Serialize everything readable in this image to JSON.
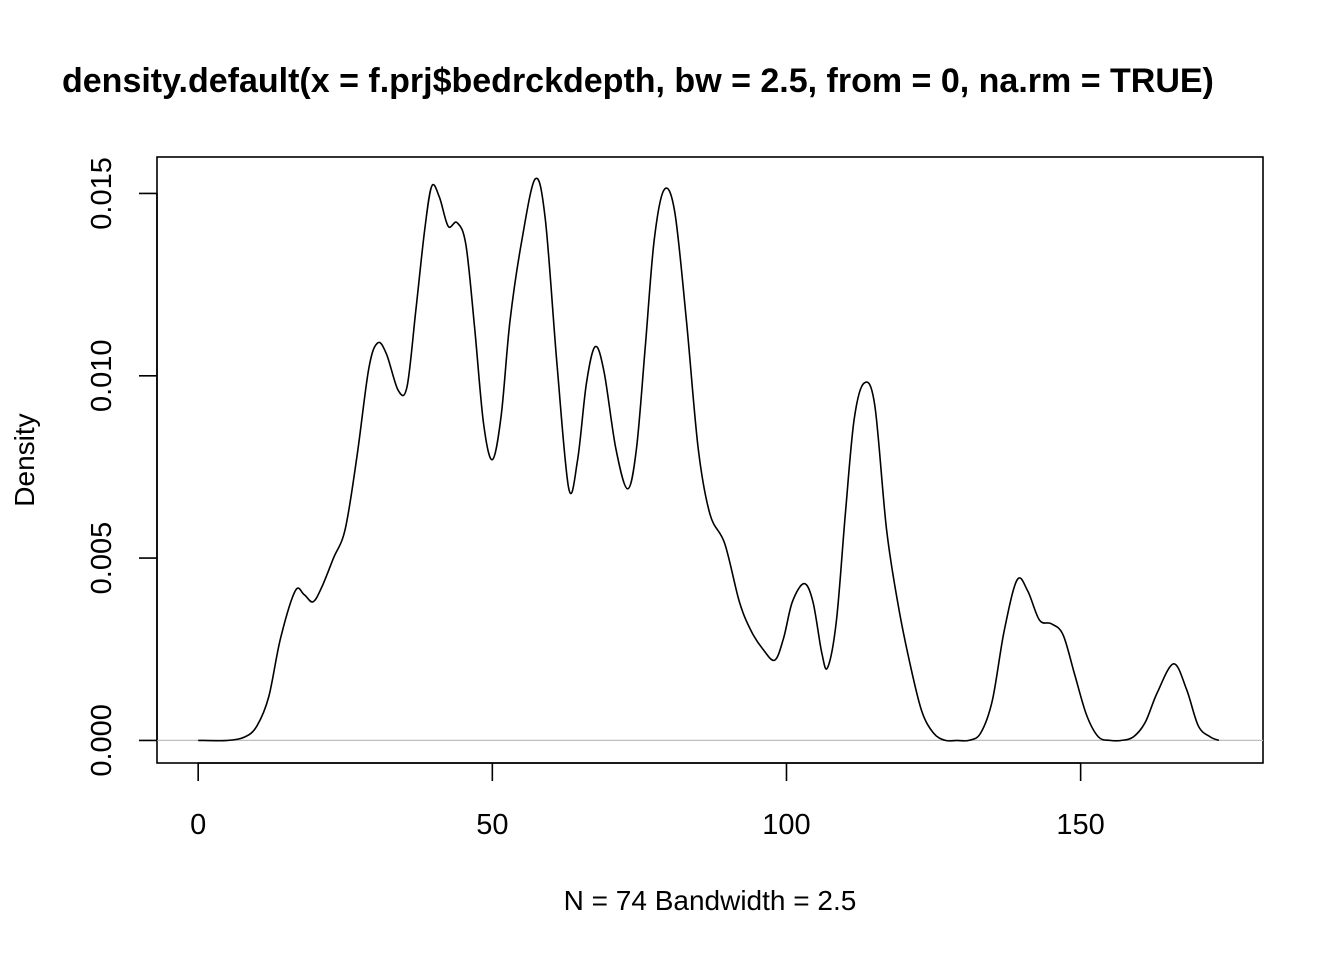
{
  "chart_data": {
    "type": "line",
    "title": "density.default(x = f.prj$bedrckdepth, bw = 2.5, from = 0, na.rm = TRUE)",
    "xlabel": "N = 74   Bandwidth = 2.5",
    "ylabel": "Density",
    "xlim": [
      -7,
      181
    ],
    "ylim": [
      -0.00062,
      0.016
    ],
    "x_ticks": [
      0,
      50,
      100,
      150
    ],
    "x_tick_labels": [
      "0",
      "50",
      "100",
      "150"
    ],
    "y_ticks": [
      0.0,
      0.005,
      0.01,
      0.015
    ],
    "y_tick_labels": [
      "0.000",
      "0.005",
      "0.010",
      "0.015"
    ],
    "baseline": 0,
    "grid": false,
    "series": [
      {
        "x": [
          0,
          5,
          8,
          10,
          12,
          14,
          16.5,
          18,
          19.5,
          21,
          23,
          25,
          27,
          29,
          30.5,
          32,
          34,
          35.5,
          37,
          38.5,
          39.7,
          41,
          42.5,
          44,
          45.5,
          47,
          48.5,
          50,
          51.5,
          53,
          55,
          57.3,
          59,
          61,
          63,
          64.5,
          66,
          67.5,
          69,
          71,
          73,
          74.5,
          76,
          77.5,
          79.2,
          81,
          83,
          85,
          87,
          89.5,
          92,
          94,
          96,
          98,
          99.5,
          101,
          103,
          104.5,
          106,
          107,
          108.5,
          110,
          111.5,
          113.2,
          115,
          117,
          119,
          121,
          123,
          125,
          127,
          129,
          131,
          133,
          135,
          137,
          139.2,
          141,
          143,
          145,
          147,
          149,
          151,
          153,
          155,
          157,
          159,
          161,
          163,
          165.8,
          168,
          170,
          172,
          173.5
        ],
        "y": [
          0,
          0,
          0.0001,
          0.0004,
          0.0012,
          0.0028,
          0.0041,
          0.004,
          0.0038,
          0.0042,
          0.005,
          0.0058,
          0.0078,
          0.0102,
          0.0109,
          0.0106,
          0.0096,
          0.0097,
          0.0118,
          0.014,
          0.0152,
          0.0149,
          0.0141,
          0.0142,
          0.0136,
          0.0113,
          0.0087,
          0.0077,
          0.0089,
          0.0115,
          0.0137,
          0.0154,
          0.0143,
          0.0103,
          0.0069,
          0.0077,
          0.0098,
          0.0108,
          0.0101,
          0.008,
          0.0069,
          0.008,
          0.0108,
          0.0137,
          0.0151,
          0.0145,
          0.0115,
          0.008,
          0.0062,
          0.0054,
          0.0038,
          0.003,
          0.0025,
          0.0022,
          0.0028,
          0.0038,
          0.0043,
          0.0038,
          0.0024,
          0.002,
          0.0033,
          0.0062,
          0.0088,
          0.0098,
          0.0092,
          0.0058,
          0.0037,
          0.0021,
          0.0008,
          0.0002,
          0,
          0,
          0,
          0.0002,
          0.0011,
          0.003,
          0.0044,
          0.0041,
          0.0033,
          0.0032,
          0.0029,
          0.0018,
          0.0007,
          0.0001,
          0,
          0,
          0.0001,
          0.0005,
          0.0013,
          0.0021,
          0.0014,
          0.0004,
          0.0001,
          0
        ]
      }
    ]
  }
}
